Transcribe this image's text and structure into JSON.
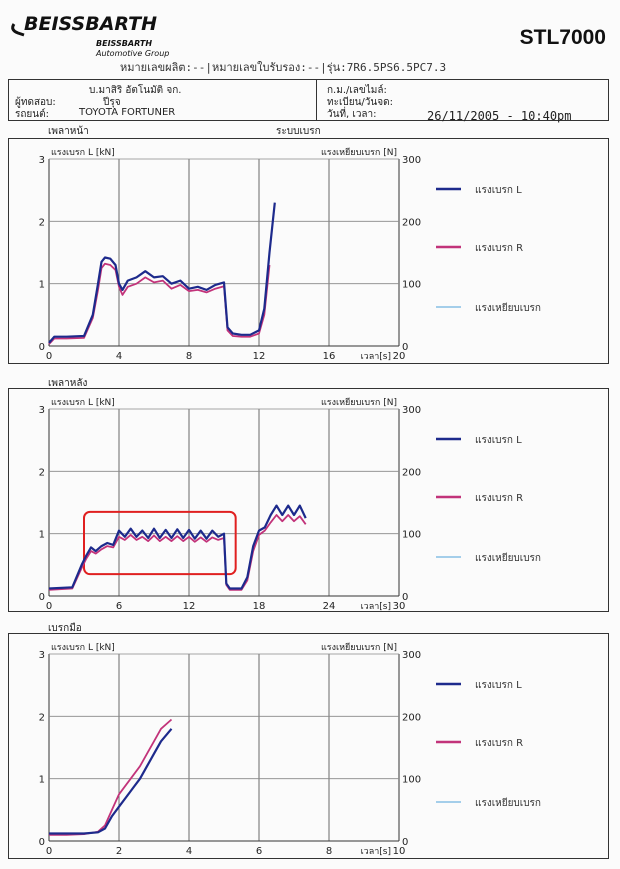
{
  "header": {
    "brand": "BEISSBARTH",
    "brand_sub1": "BEISSBARTH",
    "brand_sub2": "Automotive Group",
    "model": "STL7000",
    "vehicle_line": "หมายเลขผลิต:--|หมายเลขใบรับรอง:--|รุ่น:7R6.5PS6.5PC7.3",
    "company_line": "บ.มาสิริ อัตโนมัติ จก.",
    "inspector_label": "ผู้ทดสอบ:",
    "inspector_value": "ปีรุจ",
    "vehicle_label": "รถยนต์:",
    "vehicle_value": "TOYOTA FORTUNER",
    "plate_label": "ก.ม./เลขไมล์:",
    "reg_label": "ทะเบียน/วันจด:",
    "datetime_label": "วันที่, เวลา:",
    "datetime_value": "26/11/2005 - 10:40pm"
  },
  "sections": [
    {
      "title": "เพลาหน้า",
      "subtitle": "ระบบเบรก"
    },
    {
      "title": "เพลาหลัง",
      "subtitle": ""
    },
    {
      "title": "เบรกมือ",
      "subtitle": ""
    }
  ],
  "chart_data": [
    {
      "type": "line",
      "title": "เพลาหน้า",
      "xlabel": "เวลา[s]",
      "ylabel": "แรงเบรก L [kN]",
      "y2label": "แรงเหยียบเบรก [N]",
      "xlim": [
        0,
        20
      ],
      "ylim": [
        0,
        3
      ],
      "y2lim": [
        0,
        300
      ],
      "xticks": [
        0,
        4,
        8,
        12,
        16,
        20
      ],
      "yticks": [
        0,
        1,
        2,
        3
      ],
      "y2ticks": [
        0,
        100,
        200,
        300
      ],
      "legend_position": "right",
      "series": [
        {
          "name": "แรงเบรก L",
          "color": "#1d2a8c",
          "x": [
            0,
            0.3,
            1,
            2,
            2.5,
            2.8,
            3,
            3.2,
            3.5,
            3.8,
            4,
            4.2,
            4.5,
            5,
            5.5,
            6,
            6.5,
            7,
            7.5,
            8,
            8.5,
            9,
            9.5,
            10,
            10.2,
            10.5,
            11,
            11.5,
            12,
            12.3,
            12.6,
            12.9
          ],
          "y": [
            0.05,
            0.15,
            0.15,
            0.16,
            0.5,
            1.0,
            1.35,
            1.42,
            1.4,
            1.3,
            1.0,
            0.9,
            1.05,
            1.1,
            1.2,
            1.1,
            1.12,
            1.0,
            1.05,
            0.92,
            0.95,
            0.9,
            0.98,
            1.02,
            0.3,
            0.2,
            0.18,
            0.18,
            0.25,
            0.6,
            1.5,
            2.3
          ]
        },
        {
          "name": "แรงเบรก R",
          "color": "#c2337a",
          "x": [
            0,
            0.3,
            1,
            2,
            2.5,
            2.8,
            3,
            3.2,
            3.5,
            3.8,
            4,
            4.2,
            4.5,
            5,
            5.5,
            6,
            6.5,
            7,
            7.5,
            8,
            8.5,
            9,
            9.5,
            10,
            10.2,
            10.5,
            11,
            11.5,
            12,
            12.3,
            12.6
          ],
          "y": [
            0.03,
            0.12,
            0.12,
            0.13,
            0.45,
            0.9,
            1.25,
            1.32,
            1.3,
            1.22,
            0.95,
            0.82,
            0.95,
            1.0,
            1.1,
            1.02,
            1.05,
            0.92,
            0.98,
            0.88,
            0.9,
            0.86,
            0.92,
            0.96,
            0.25,
            0.16,
            0.15,
            0.15,
            0.2,
            0.5,
            1.3
          ]
        },
        {
          "name": "แรงเหยียบเบรก",
          "color": "#6fb2df",
          "x": [],
          "y": []
        }
      ]
    },
    {
      "type": "line",
      "title": "เพลาหลัง",
      "xlabel": "เวลา[s]",
      "ylabel": "แรงเบรก L [kN]",
      "y2label": "แรงเหยียบเบรก [N]",
      "xlim": [
        0,
        30
      ],
      "ylim": [
        0,
        3
      ],
      "y2lim": [
        0,
        300
      ],
      "xticks": [
        0,
        6,
        12,
        18,
        24,
        30
      ],
      "yticks": [
        0,
        1,
        2,
        3
      ],
      "y2ticks": [
        0,
        100,
        200,
        300
      ],
      "legend_position": "right",
      "annotation": {
        "type": "highlight-box",
        "color": "#e02020",
        "x_range": [
          3,
          16
        ],
        "y_range": [
          0.35,
          1.35
        ]
      },
      "series": [
        {
          "name": "แรงเบรก L",
          "color": "#1d2a8c",
          "x": [
            0,
            2,
            2.8,
            3.2,
            3.6,
            4,
            4.5,
            5,
            5.5,
            6,
            6.5,
            7,
            7.5,
            8,
            8.5,
            9,
            9.5,
            10,
            10.5,
            11,
            11.5,
            12,
            12.5,
            13,
            13.5,
            14,
            14.5,
            15,
            15.2,
            15.5,
            16.5,
            17,
            17.5,
            18,
            18.5,
            19,
            19.5,
            20,
            20.5,
            21,
            21.5,
            22
          ],
          "y": [
            0.12,
            0.14,
            0.5,
            0.65,
            0.78,
            0.72,
            0.8,
            0.85,
            0.82,
            1.05,
            0.95,
            1.08,
            0.95,
            1.05,
            0.93,
            1.08,
            0.93,
            1.06,
            0.93,
            1.07,
            0.93,
            1.06,
            0.92,
            1.05,
            0.92,
            1.05,
            0.95,
            1.0,
            0.2,
            0.12,
            0.12,
            0.3,
            0.8,
            1.05,
            1.1,
            1.3,
            1.45,
            1.3,
            1.45,
            1.3,
            1.45,
            1.25
          ]
        },
        {
          "name": "แรงเบรก R",
          "color": "#c2337a",
          "x": [
            0,
            2,
            2.8,
            3.2,
            3.6,
            4,
            4.5,
            5,
            5.5,
            6,
            6.5,
            7,
            7.5,
            8,
            8.5,
            9,
            9.5,
            10,
            10.5,
            11,
            11.5,
            12,
            12.5,
            13,
            13.5,
            14,
            14.5,
            15,
            15.2,
            15.5,
            16.5,
            17,
            17.5,
            18,
            18.5,
            19,
            19.5,
            20,
            20.5,
            21,
            21.5,
            22
          ],
          "y": [
            0.1,
            0.12,
            0.45,
            0.6,
            0.72,
            0.68,
            0.75,
            0.8,
            0.78,
            0.95,
            0.9,
            0.98,
            0.9,
            0.95,
            0.88,
            0.97,
            0.88,
            0.95,
            0.88,
            0.96,
            0.88,
            0.95,
            0.87,
            0.94,
            0.87,
            0.94,
            0.9,
            0.93,
            0.18,
            0.1,
            0.1,
            0.25,
            0.72,
            0.98,
            1.05,
            1.18,
            1.3,
            1.2,
            1.3,
            1.2,
            1.28,
            1.15
          ]
        },
        {
          "name": "แรงเหยียบเบรก",
          "color": "#6fb2df",
          "x": [],
          "y": []
        }
      ]
    },
    {
      "type": "line",
      "title": "เบรกมือ",
      "xlabel": "เวลา[s]",
      "ylabel": "แรงเบรก L [kN]",
      "y2label": "แรงเหยียบเบรก [N]",
      "xlim": [
        0,
        10
      ],
      "ylim": [
        0,
        3
      ],
      "y2lim": [
        0,
        300
      ],
      "xticks": [
        0,
        2,
        4,
        6,
        8,
        10
      ],
      "yticks": [
        0,
        1,
        2,
        3
      ],
      "y2ticks": [
        0,
        100,
        200,
        300
      ],
      "legend_position": "right",
      "series": [
        {
          "name": "แรงเบรก L",
          "color": "#1d2a8c",
          "x": [
            0,
            0.5,
            1,
            1.4,
            1.6,
            1.8,
            2,
            2.2,
            2.4,
            2.6,
            2.8,
            3,
            3.2,
            3.5
          ],
          "y": [
            0.12,
            0.12,
            0.12,
            0.14,
            0.2,
            0.4,
            0.55,
            0.7,
            0.85,
            1.0,
            1.2,
            1.4,
            1.6,
            1.8
          ]
        },
        {
          "name": "แรงเบรก R",
          "color": "#c2337a",
          "x": [
            0,
            0.5,
            1,
            1.4,
            1.6,
            1.8,
            2,
            2.2,
            2.4,
            2.6,
            2.8,
            3,
            3.2,
            3.5
          ],
          "y": [
            0.1,
            0.1,
            0.11,
            0.15,
            0.25,
            0.5,
            0.75,
            0.9,
            1.05,
            1.2,
            1.4,
            1.6,
            1.8,
            1.95
          ]
        },
        {
          "name": "แรงเหยียบเบรก",
          "color": "#6fb2df",
          "x": [],
          "y": []
        }
      ]
    }
  ]
}
